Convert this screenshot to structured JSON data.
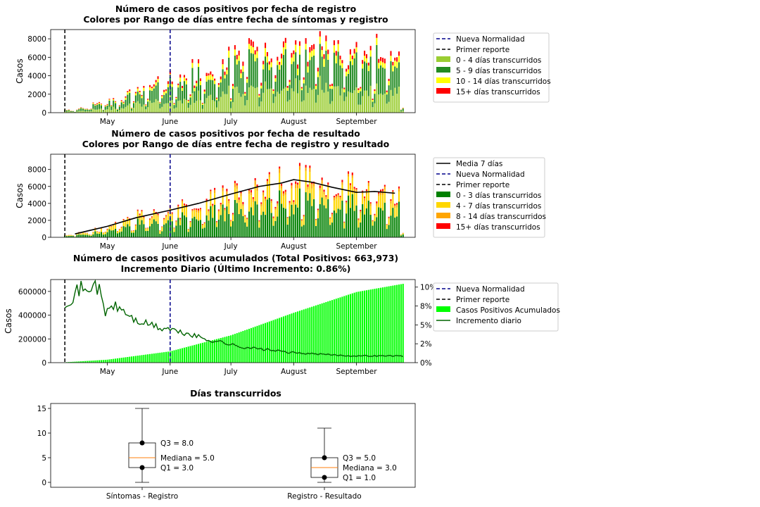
{
  "chart_data": [
    {
      "type": "bar",
      "stacked": true,
      "title": "Número de casos positivos por fecha de registro",
      "subtitle": "Colores por Rango de días entre fecha de síntomas y registro",
      "ylabel": "Casos",
      "ylim": [
        0,
        9000
      ],
      "yticks": [
        0,
        2000,
        4000,
        6000,
        8000
      ],
      "xlim": [
        "2020-04-03",
        "2020-09-30"
      ],
      "xticks": [
        {
          "date": "2020-05-01",
          "label": "May"
        },
        {
          "date": "2020-06-01",
          "label": "June"
        },
        {
          "date": "2020-07-01",
          "label": "July"
        },
        {
          "date": "2020-08-01",
          "label": "August"
        },
        {
          "date": "2020-09-01",
          "label": "September"
        }
      ],
      "vlines": [
        {
          "date": "2020-04-10",
          "color": "#000000",
          "label": "Primer reporte"
        },
        {
          "date": "2020-06-01",
          "color": "#00008b",
          "label": "Nueva Normalidad"
        }
      ],
      "first_date": "2020-04-10",
      "last_date": "2020-09-24",
      "totals_weekly": [
        300,
        500,
        900,
        1200,
        1500,
        2000,
        2600,
        3300,
        3500,
        3800,
        4200,
        4600,
        5000,
        5500,
        5900,
        6200,
        6500,
        6800,
        7000,
        7200,
        7500,
        7700,
        7300,
        6800,
        6500,
        6300,
        6000,
        6100
      ],
      "series": [
        {
          "name": "0 - 4 días transcurridos",
          "color": "#9acd32",
          "share": 0.38
        },
        {
          "name": "5 - 9 días transcurridos",
          "color": "#228b22",
          "share": 0.45
        },
        {
          "name": "10 - 14 días transcurridos",
          "color": "#ffff00",
          "share": 0.1
        },
        {
          "name": "15+ días transcurridos",
          "color": "#ff0000",
          "share": 0.07
        }
      ],
      "legend": [
        "Nueva Normalidad",
        "Primer reporte",
        "0 - 4 días transcurridos",
        "5 - 9 días transcurridos",
        "10 - 14 días transcurridos",
        "15+ días transcurridos"
      ],
      "legend_position": "right"
    },
    {
      "type": "bar",
      "stacked": true,
      "title": "Número de casos positivos por fecha de resultado",
      "subtitle": "Colores por Rango de días entre fecha de registro y resultado",
      "ylabel": "Casos",
      "ylim": [
        0,
        9800
      ],
      "yticks": [
        0,
        2000,
        4000,
        6000,
        8000
      ],
      "xlim": [
        "2020-04-03",
        "2020-09-30"
      ],
      "xticks": [
        {
          "date": "2020-05-01",
          "label": "May"
        },
        {
          "date": "2020-06-01",
          "label": "June"
        },
        {
          "date": "2020-07-01",
          "label": "July"
        },
        {
          "date": "2020-08-01",
          "label": "August"
        },
        {
          "date": "2020-09-01",
          "label": "September"
        }
      ],
      "vlines": [
        {
          "date": "2020-04-10",
          "color": "#000000",
          "label": "Primer reporte"
        },
        {
          "date": "2020-06-01",
          "color": "#00008b",
          "label": "Nueva Normalidad"
        }
      ],
      "first_date": "2020-04-10",
      "last_date": "2020-09-24",
      "totals_weekly": [
        300,
        600,
        900,
        1300,
        1700,
        2100,
        2600,
        3000,
        3200,
        3500,
        3900,
        4300,
        4700,
        5200,
        5600,
        6000,
        6300,
        6500,
        6800,
        7000,
        6800,
        6400,
        6000,
        5800,
        5700,
        5600,
        5500,
        5300
      ],
      "series": [
        {
          "name": "0 - 3 días transcurridos",
          "color": "#008000",
          "share": 0.62
        },
        {
          "name": "4 - 7 días transcurridos",
          "color": "#ffd700",
          "share": 0.28
        },
        {
          "name": "8 - 14 días transcurridos",
          "color": "#ffa500",
          "share": 0.06
        },
        {
          "name": "15+ días transcurridos",
          "color": "#ff0000",
          "share": 0.04
        }
      ],
      "line": {
        "name": "Media 7 días",
        "color": "#000000",
        "dates": [
          "2020-04-15",
          "2020-05-01",
          "2020-05-15",
          "2020-06-01",
          "2020-06-15",
          "2020-07-01",
          "2020-07-15",
          "2020-07-26",
          "2020-08-01",
          "2020-08-10",
          "2020-08-20",
          "2020-09-01",
          "2020-09-10",
          "2020-09-20"
        ],
        "values": [
          400,
          1300,
          2300,
          3200,
          4000,
          5100,
          6000,
          6400,
          6800,
          6500,
          5900,
          5300,
          5400,
          5200
        ]
      },
      "legend": [
        "Media 7 días",
        "Nueva Normalidad",
        "Primer reporte",
        "0 - 3 días transcurridos",
        "4 - 7 días transcurridos",
        "8 - 14 días transcurridos",
        "15+ días transcurridos"
      ],
      "legend_position": "right"
    },
    {
      "type": "bar",
      "title": "Número de casos positivos acumulados (Total Positivos: 663,973)",
      "subtitle": "Incremento Diario (Último Incremento: 0.86%)",
      "ylabel": "Casos",
      "ylim": [
        0,
        700000
      ],
      "yticks": [
        0,
        200000,
        400000,
        600000
      ],
      "y2lim": [
        0,
        0.11
      ],
      "y2ticks": [
        "0%",
        "2%",
        "5%",
        "8%",
        "10%"
      ],
      "xlim": [
        "2020-04-03",
        "2020-09-30"
      ],
      "xticks": [
        {
          "date": "2020-05-01",
          "label": "May"
        },
        {
          "date": "2020-06-01",
          "label": "June"
        },
        {
          "date": "2020-07-01",
          "label": "July"
        },
        {
          "date": "2020-08-01",
          "label": "August"
        },
        {
          "date": "2020-09-01",
          "label": "September"
        }
      ],
      "vlines": [
        {
          "date": "2020-04-10",
          "color": "#000000",
          "label": "Primer reporte"
        },
        {
          "date": "2020-06-01",
          "color": "#00008b",
          "label": "Nueva Normalidad"
        }
      ],
      "bars": {
        "name": "Casos Positivos Acumulados",
        "color": "#00ff00",
        "dates": [
          "2020-04-10",
          "2020-05-01",
          "2020-06-01",
          "2020-07-01",
          "2020-08-01",
          "2020-09-01",
          "2020-09-24"
        ],
        "values": [
          3000,
          25000,
          95000,
          230000,
          420000,
          595000,
          663973
        ]
      },
      "line": {
        "name": "Incremento diario",
        "color": "#006400",
        "dates": [
          "2020-04-10",
          "2020-04-13",
          "2020-04-16",
          "2020-04-19",
          "2020-04-21",
          "2020-04-24",
          "2020-04-27",
          "2020-04-30",
          "2020-05-03",
          "2020-05-07",
          "2020-05-12",
          "2020-05-15",
          "2020-05-19",
          "2020-05-23",
          "2020-05-27",
          "2020-06-01",
          "2020-06-05",
          "2020-06-10",
          "2020-06-15",
          "2020-06-20",
          "2020-06-25",
          "2020-07-01",
          "2020-07-05",
          "2020-07-10",
          "2020-07-15",
          "2020-07-20",
          "2020-07-25",
          "2020-08-01",
          "2020-08-08",
          "2020-08-15",
          "2020-08-22",
          "2020-08-29",
          "2020-09-05",
          "2020-09-12",
          "2020-09-18",
          "2020-09-24"
        ],
        "values": [
          0.08,
          0.085,
          0.095,
          0.1,
          0.09,
          0.108,
          0.095,
          0.065,
          0.075,
          0.072,
          0.062,
          0.055,
          0.052,
          0.05,
          0.045,
          0.045,
          0.04,
          0.038,
          0.034,
          0.03,
          0.028,
          0.024,
          0.021,
          0.02,
          0.018,
          0.017,
          0.015,
          0.013,
          0.012,
          0.011,
          0.01,
          0.009,
          0.009,
          0.009,
          0.009,
          0.0086
        ]
      },
      "legend": [
        "Nueva Normalidad",
        "Primer reporte",
        "Casos Positivos Acumulados",
        "Incremento diario"
      ],
      "legend_position": "right"
    },
    {
      "type": "box",
      "title": "Días transcurridos",
      "ylim": [
        -1,
        16
      ],
      "yticks": [
        0,
        5,
        10,
        15
      ],
      "categories": [
        "Síntomas - Registro",
        "Registro - Resultado"
      ],
      "boxes": [
        {
          "whisker_low": 0,
          "q1": 3,
          "median": 5,
          "q3": 8,
          "whisker_high": 15,
          "labels": [
            "Q3 = 8.0",
            "Mediana = 5.0",
            "Q1 = 3.0"
          ]
        },
        {
          "whisker_low": 0,
          "q1": 1,
          "median": 3,
          "q3": 5,
          "whisker_high": 11,
          "labels": [
            "Q3 = 5.0",
            "Mediana = 3.0",
            "Q1 = 1.0"
          ]
        }
      ]
    }
  ]
}
